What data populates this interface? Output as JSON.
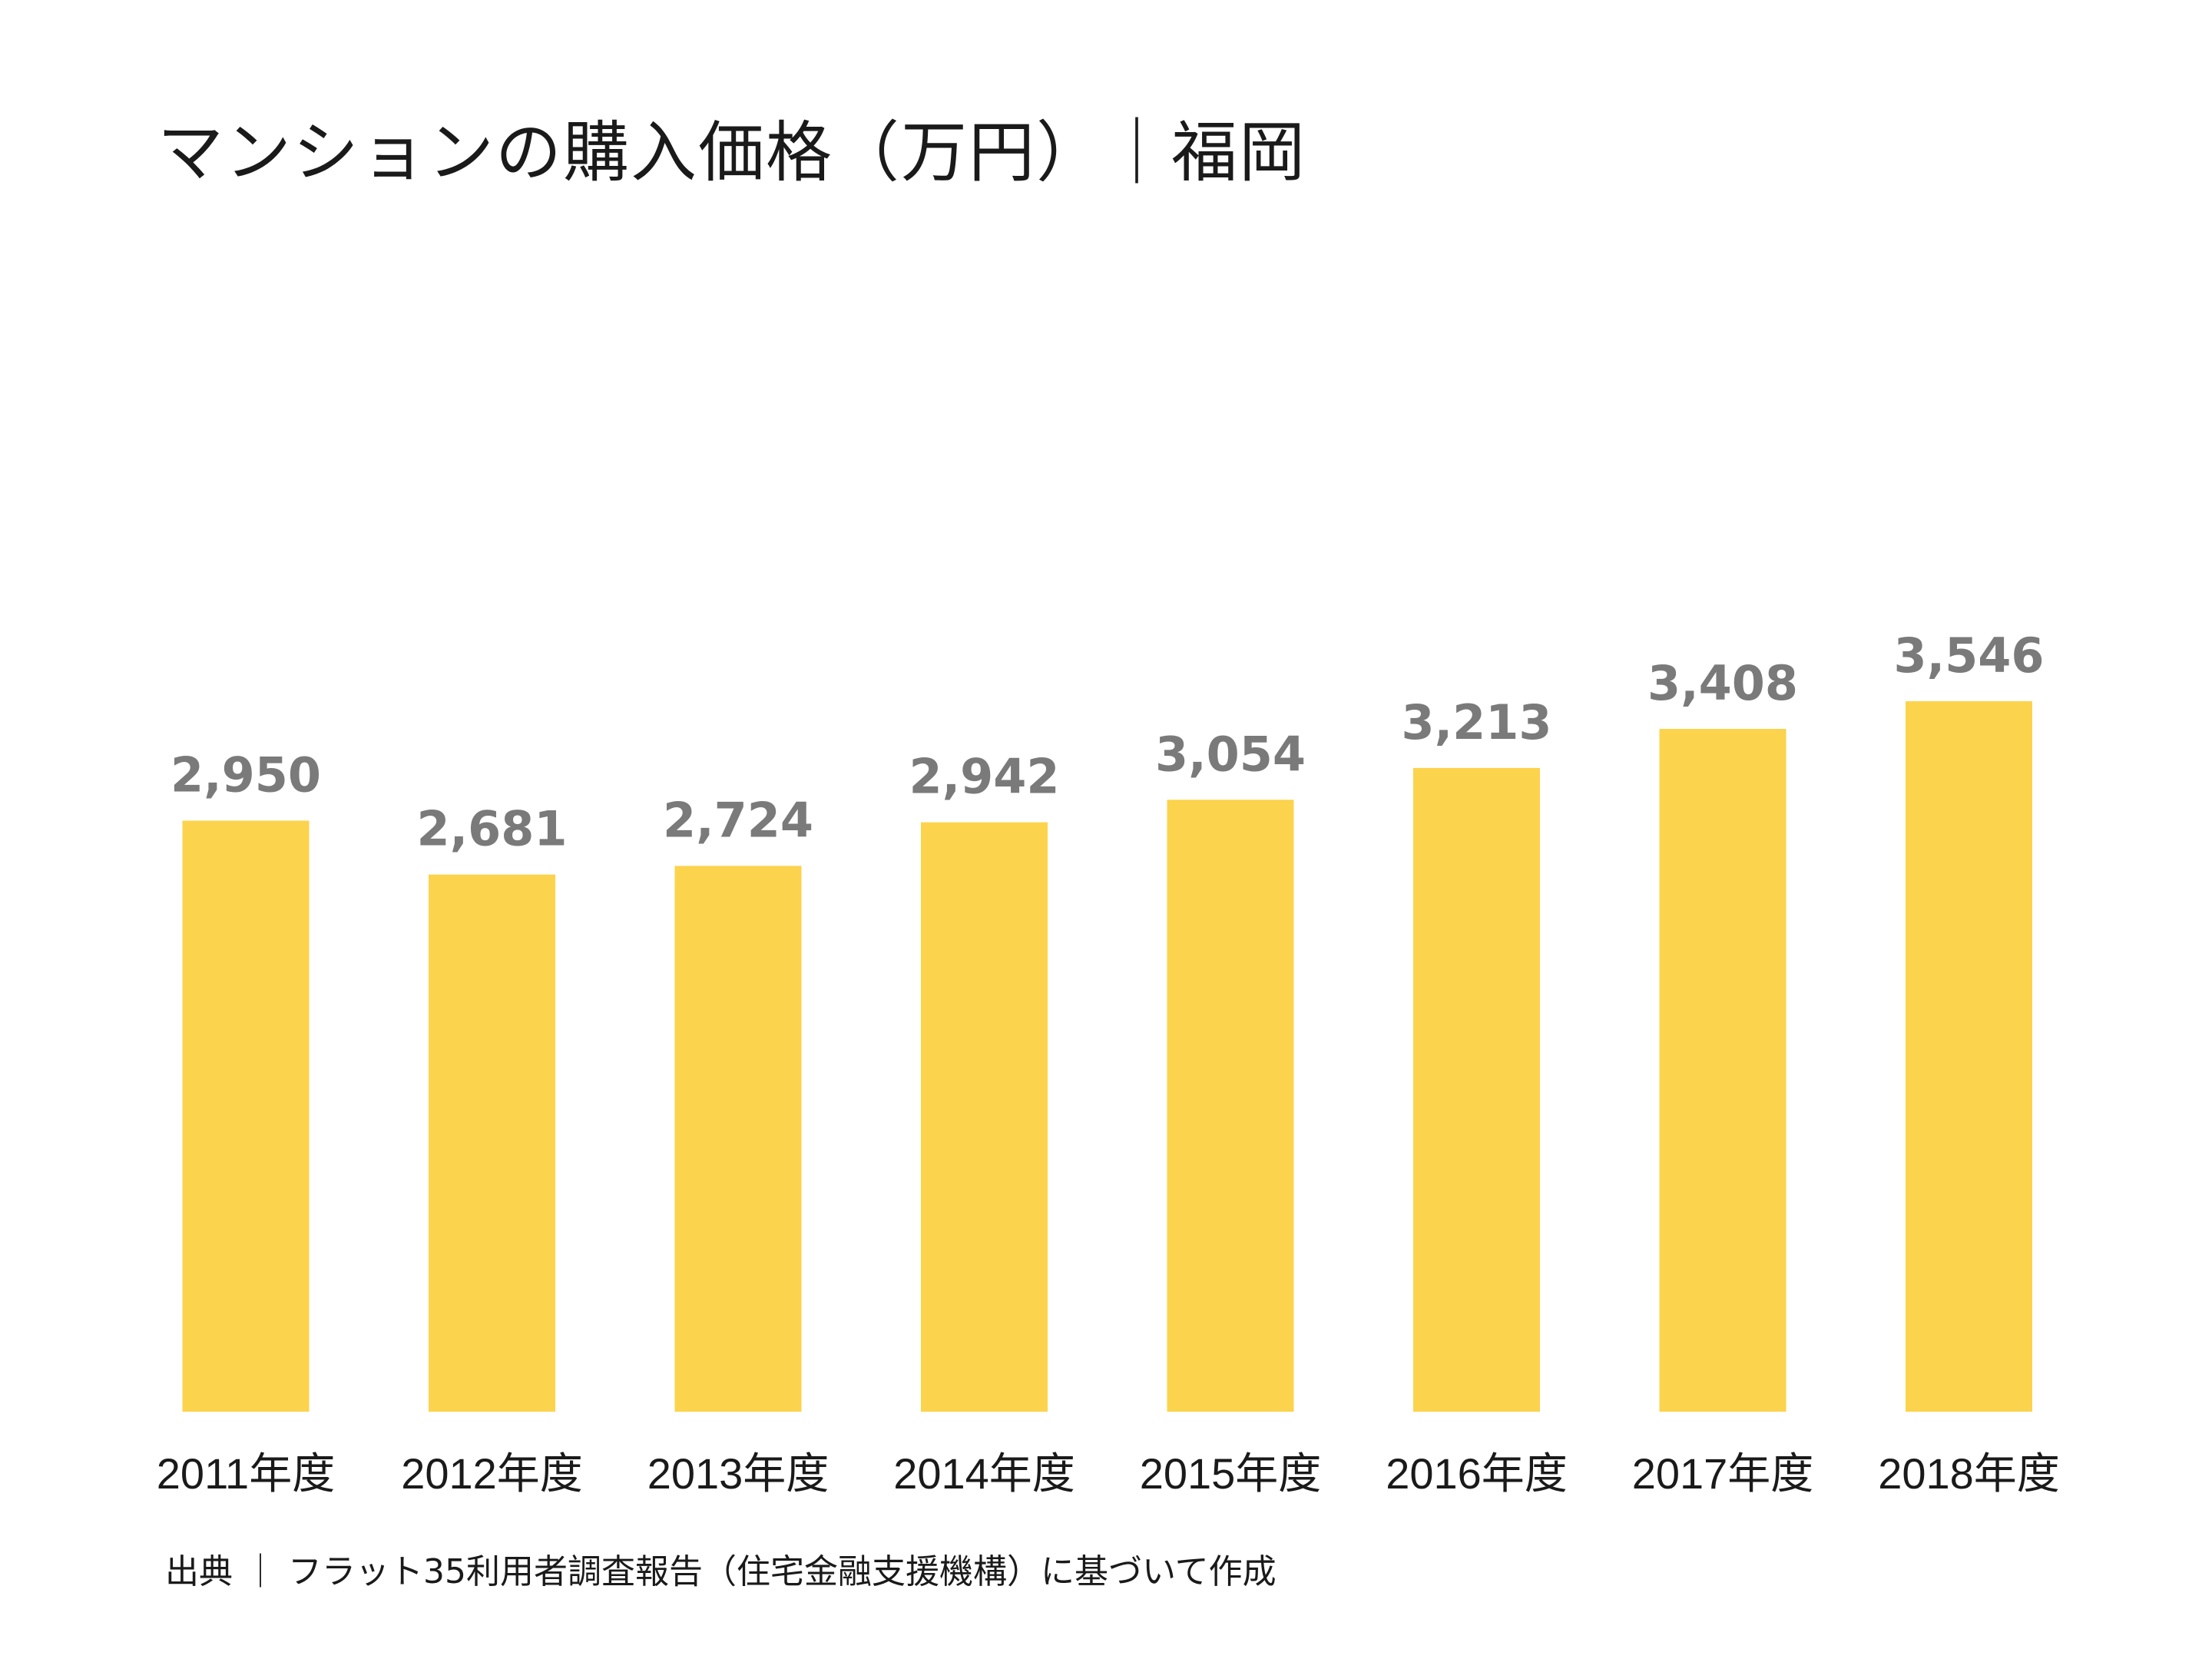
{
  "title": "マンションの購入価格（万円）｜福岡",
  "source": "出典 ｜ フラット35利用者調査報告（住宅金融支援機構）に基づいて作成",
  "colors": {
    "bar": "#FCD34D",
    "value_label": "#7a7a7a",
    "text": "#1a1a1a"
  },
  "chart_data": {
    "type": "bar",
    "title": "マンションの購入価格（万円）｜福岡",
    "categories": [
      "2011年度",
      "2012年度",
      "2013年度",
      "2014年度",
      "2015年度",
      "2016年度",
      "2017年度",
      "2018年度"
    ],
    "values": [
      2950,
      2681,
      2724,
      2942,
      3054,
      3213,
      3408,
      3546
    ],
    "value_labels": [
      "2,950",
      "2,681",
      "2,724",
      "2,942",
      "3,054",
      "3,213",
      "3,408",
      "3,546"
    ],
    "xlabel": "",
    "ylabel": "",
    "ylim": [
      0,
      3546
    ],
    "grid": false,
    "legend": "none"
  }
}
